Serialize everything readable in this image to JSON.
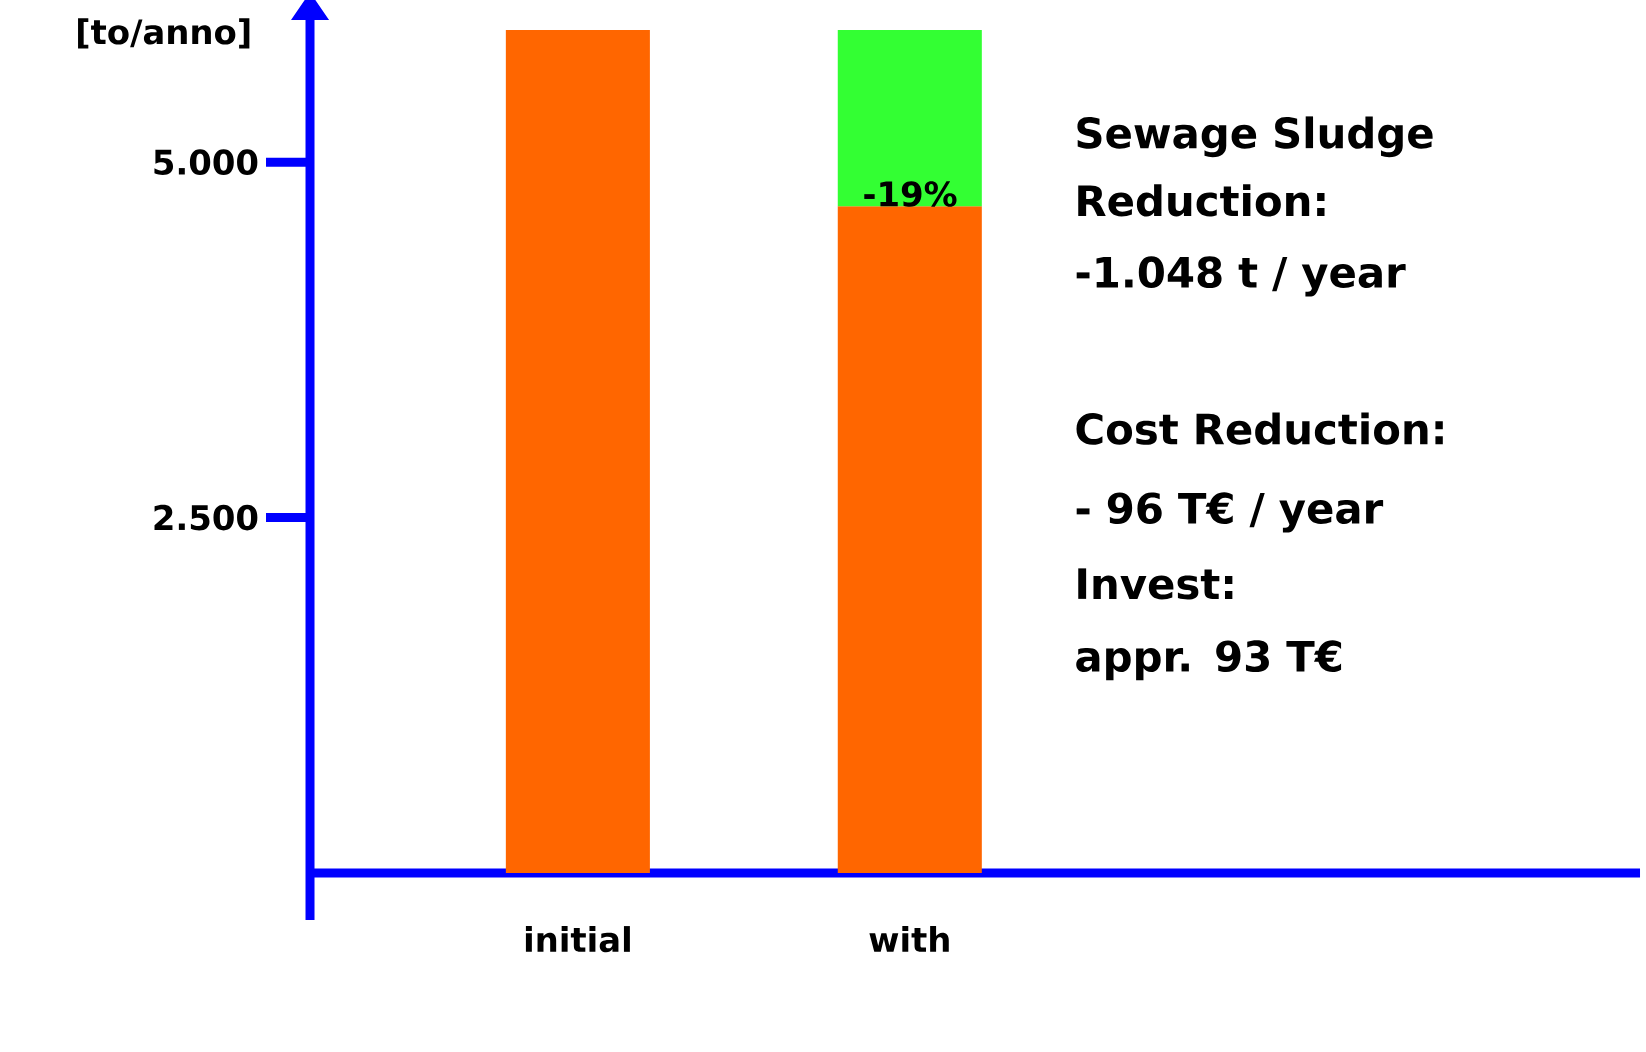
{
  "chart_data": {
    "type": "bar",
    "stacked": true,
    "ylabel": "[to/anno]",
    "categories": [
      "initial",
      "with"
    ],
    "series": [
      {
        "color": "#ff6600",
        "values": [
          5930,
          4690
        ]
      },
      {
        "color": "#33ff33",
        "values": [
          null,
          1240
        ]
      }
    ],
    "ylim": [
      -330,
      6000
    ],
    "yticks": [
      {
        "value": 2500,
        "label": "2.500"
      },
      {
        "value": 5000,
        "label": "5.000"
      }
    ],
    "annotations": [
      "-19%",
      "Sewage Sludge Reduction:",
      "-1.048 t / year",
      "Cost Reduction:",
      "- 96 T€ / year",
      "Invest:",
      "appr. 93 T€"
    ]
  }
}
